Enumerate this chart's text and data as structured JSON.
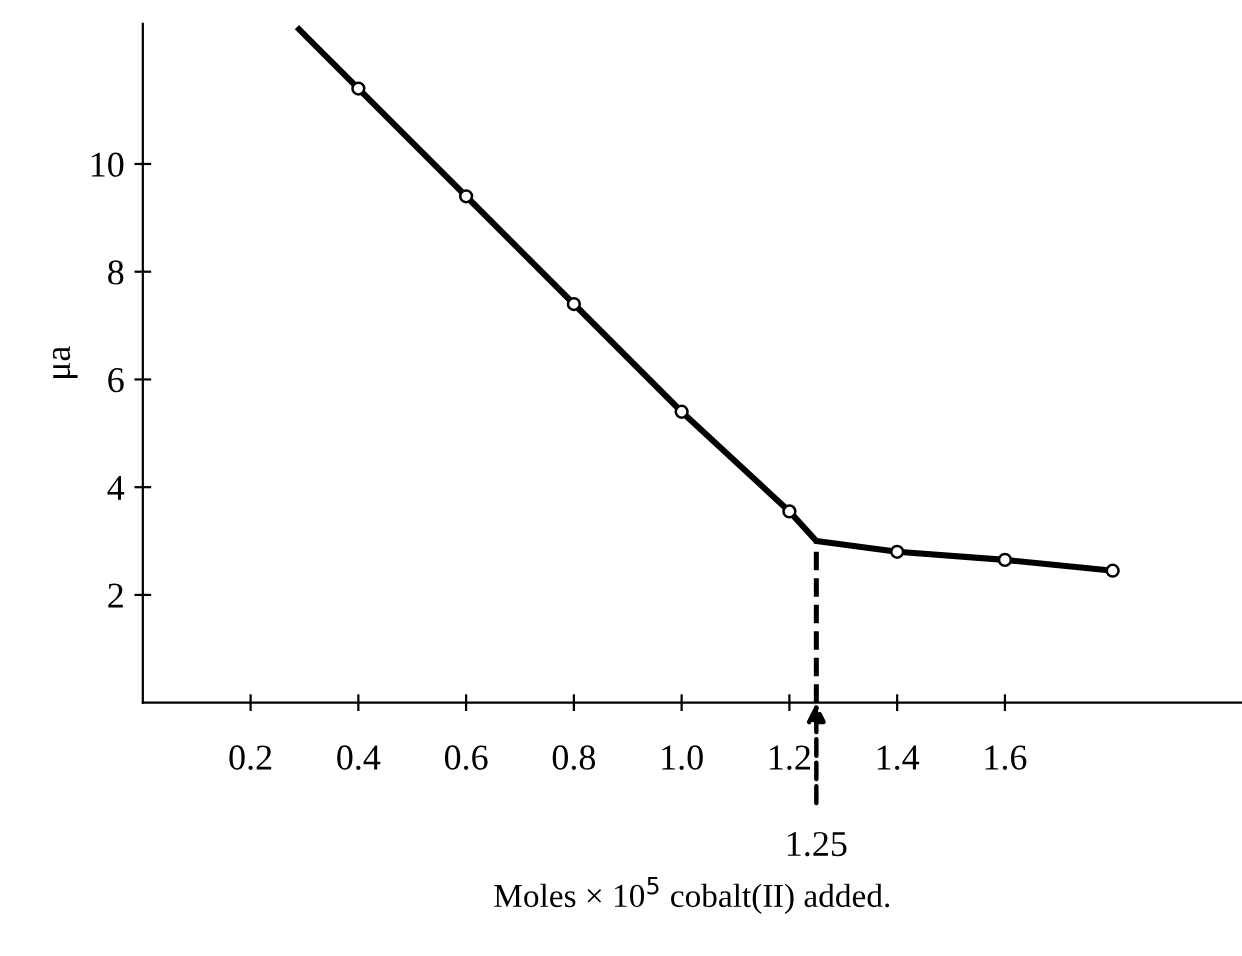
{
  "chart_data": {
    "type": "line",
    "xlabel": "Moles × 10$^{5}$ cobalt(II) added.",
    "ylabel": "μa",
    "xlim": [
      0,
      2.04
    ],
    "ylim": [
      0,
      12.6
    ],
    "xticks": [
      {
        "value": 0.2,
        "label": "0.2"
      },
      {
        "value": 0.4,
        "label": "0.4"
      },
      {
        "value": 0.6,
        "label": "0.6"
      },
      {
        "value": 0.8,
        "label": "0.8"
      },
      {
        "value": 1.0,
        "label": "1.0"
      },
      {
        "value": 1.2,
        "label": "1.2"
      },
      {
        "value": 1.4,
        "label": "1.4"
      },
      {
        "value": 1.6,
        "label": "1.6"
      }
    ],
    "yticks": [
      2,
      4,
      6,
      8,
      10
    ],
    "grid": false,
    "legend": false,
    "annotations": [
      {
        "text": "1.25",
        "x": 1.25,
        "y": 0
      }
    ],
    "series": [
      {
        "color": "#000000",
        "marker": "none",
        "line_style": "solid",
        "x": [
          0.29,
          0.4,
          0.6,
          0.8,
          1.0,
          1.2,
          1.25,
          1.4,
          1.6,
          1.8
        ],
        "values": [
          12.5,
          11.4,
          9.4,
          7.4,
          5.4,
          3.55,
          3.0,
          2.8,
          2.65,
          2.45
        ]
      },
      {
        "type": "scatter",
        "color": "#000000",
        "marker": "circle",
        "x": [
          0.4,
          0.6,
          0.8,
          1.0,
          1.2,
          1.4,
          1.6,
          1.8
        ],
        "values": [
          11.4,
          9.4,
          7.4,
          5.4,
          3.55,
          2.8,
          2.65,
          2.45
        ]
      },
      {
        "type": "line",
        "color": "#000000",
        "marker": "none",
        "line_style": "dashed",
        "x": [
          1.25,
          1.25
        ],
        "values": [
          0,
          3.0
        ]
      }
    ]
  }
}
